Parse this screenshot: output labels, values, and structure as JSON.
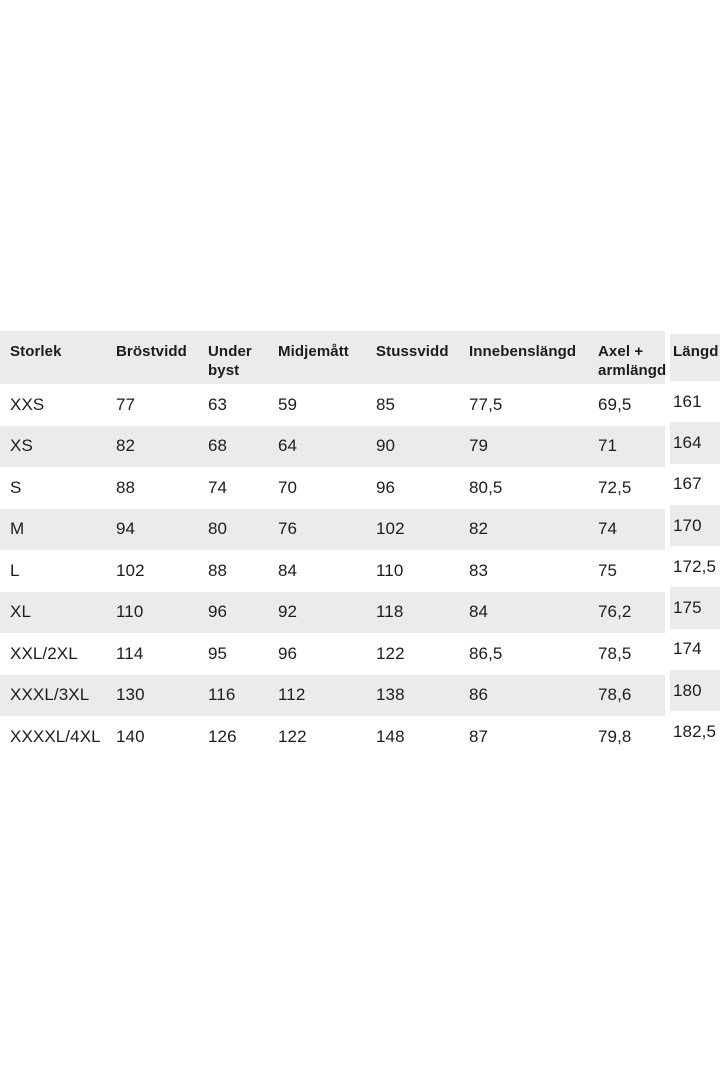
{
  "colors": {
    "background": "#ffffff",
    "stripe": "#ebebeb",
    "text": "#1d1d1d"
  },
  "table": {
    "columns": [
      {
        "key": "storlek",
        "label": "Storlek"
      },
      {
        "key": "brostvidd",
        "label": "Bröstvidd"
      },
      {
        "key": "under-byst",
        "label": "Under byst"
      },
      {
        "key": "midjematt",
        "label": "Midjemått"
      },
      {
        "key": "stussvidd",
        "label": "Stussvidd"
      },
      {
        "key": "innebenslangd",
        "label": "Innebenslängd"
      },
      {
        "key": "axel-armlangd",
        "label": "Axel + armlängd"
      },
      {
        "key": "langd",
        "label": "Längd"
      }
    ],
    "rows": [
      [
        "XXS",
        "77",
        "63",
        "59",
        "85",
        "77,5",
        "69,5",
        "161"
      ],
      [
        "XS",
        "82",
        "68",
        "64",
        "90",
        "79",
        "71",
        "164"
      ],
      [
        "S",
        "88",
        "74",
        "70",
        "96",
        "80,5",
        "72,5",
        "167"
      ],
      [
        "M",
        "94",
        "80",
        "76",
        "102",
        "82",
        "74",
        "170"
      ],
      [
        "L",
        "102",
        "88",
        "84",
        "110",
        "83",
        "75",
        "172,5"
      ],
      [
        "XL",
        "110",
        "96",
        "92",
        "118",
        "84",
        "76,2",
        "175"
      ],
      [
        "XXL/2XL",
        "114",
        "95",
        "96",
        "122",
        "86,5",
        "78,5",
        "174"
      ],
      [
        "XXXL/3XL",
        "130",
        "116",
        "112",
        "138",
        "86",
        "78,6",
        "180"
      ],
      [
        "XXXXL/4XL",
        "140",
        "126",
        "122",
        "148",
        "87",
        "79,8",
        "182,5"
      ]
    ]
  }
}
